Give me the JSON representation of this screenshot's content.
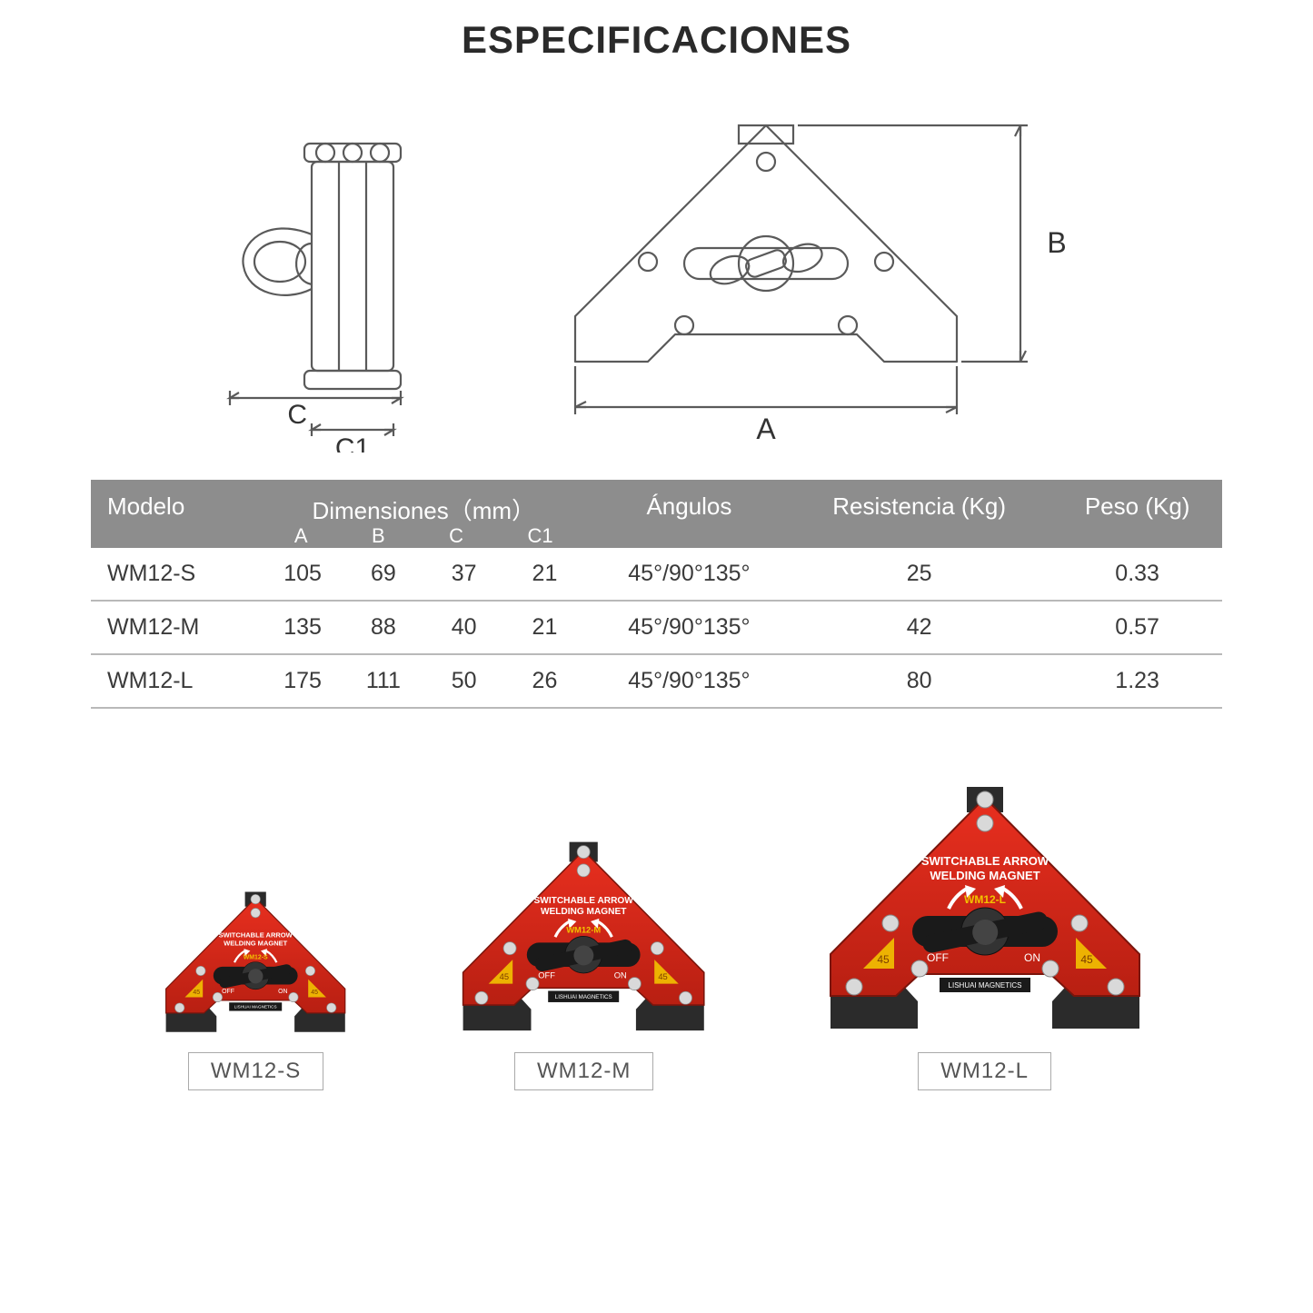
{
  "title": "ESPECIFICACIONES",
  "diagram": {
    "labels": {
      "A": "A",
      "B": "B",
      "C": "C",
      "C1": "C1"
    },
    "stroke": "#5a5a5a",
    "stroke_width": 2
  },
  "table": {
    "header_bg": "#8d8d8d",
    "header_fg": "#ffffff",
    "row_divider": "#b9b9b9",
    "columns": {
      "modelo": "Modelo",
      "dimensiones": "Dimensiones（mm）",
      "dim_sub": [
        "A",
        "B",
        "C",
        "C1"
      ],
      "angulos": "Ángulos",
      "resistencia": "Resistencia (Kg)",
      "peso": "Peso (Kg)"
    },
    "rows": [
      {
        "modelo": "WM12-S",
        "A": "105",
        "B": "69",
        "C": "37",
        "C1": "21",
        "angulos": "45°/90°135°",
        "resistencia": "25",
        "peso": "0.33"
      },
      {
        "modelo": "WM12-M",
        "A": "135",
        "B": "88",
        "C": "40",
        "C1": "21",
        "angulos": "45°/90°135°",
        "resistencia": "42",
        "peso": "0.57"
      },
      {
        "modelo": "WM12-L",
        "A": "175",
        "B": "111",
        "C": "50",
        "C1": "26",
        "angulos": "45°/90°135°",
        "resistencia": "80",
        "peso": "1.23"
      }
    ]
  },
  "products": [
    {
      "label": "WM12-S",
      "scale": 0.58
    },
    {
      "label": "WM12-M",
      "scale": 0.78
    },
    {
      "label": "WM12-L",
      "scale": 1.0
    }
  ],
  "product_colors": {
    "body": "#e82f1f",
    "body_dark": "#b81f12",
    "tab": "#2b2b2b",
    "knob": "#1a1a1a",
    "bolt": "#d9d9d9",
    "text": "#ffffff",
    "accent": "#f2c200"
  },
  "product_text": {
    "line1": "SWITCHABLE ARROW",
    "line2": "WELDING MAGNET",
    "off": "OFF",
    "on": "ON",
    "angle": "45",
    "brand": "LISHUAI MAGNETICS"
  }
}
